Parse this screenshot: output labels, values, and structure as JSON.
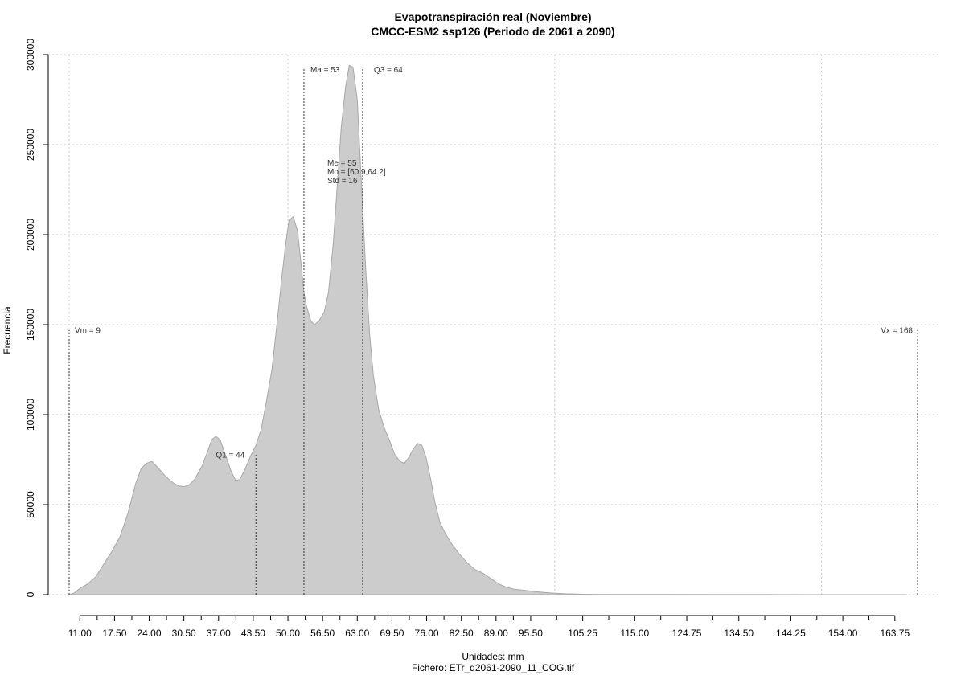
{
  "chart_data": {
    "type": "area",
    "title": "Evapotranspiración real (Noviembre)",
    "subtitle": "CMCC-ESM2 ssp126 (Periodo de 2061 a 2090)",
    "xlabel": "Unidades: mm",
    "ylabel": "Frecuencia",
    "footer": "Fichero: ETr_d2061-2090_11_COG.tif",
    "xlim": [
      9,
      168
    ],
    "ylim": [
      0,
      300000
    ],
    "grid": true,
    "fill_color": "#cccccc",
    "line_color": "#a8a8a8",
    "x_ticks": [
      11.0,
      17.5,
      24.0,
      30.5,
      37.0,
      43.5,
      50.0,
      56.5,
      63.0,
      69.5,
      76.0,
      82.5,
      89.0,
      95.5,
      105.25,
      115.0,
      124.75,
      134.5,
      144.25,
      154.0,
      163.75
    ],
    "x_tick_labels": [
      "11.00",
      "17.50",
      "24.00",
      "30.50",
      "37.00",
      "43.50",
      "50.00",
      "56.50",
      "63.00",
      "69.50",
      "76.00",
      "82.50",
      "89.00",
      "95.50",
      "105.25",
      "115.00",
      "124.75",
      "134.50",
      "144.25",
      "154.00",
      "163.75"
    ],
    "y_ticks": [
      0,
      50000,
      100000,
      150000,
      200000,
      250000,
      300000
    ],
    "y_tick_labels": [
      "0",
      "50000",
      "100000",
      "150000",
      "200000",
      "250000",
      "300000"
    ],
    "x": [
      9,
      10,
      11,
      12.5,
      14,
      15.5,
      17,
      18.5,
      20,
      21.5,
      22.5,
      23.5,
      24.5,
      25.5,
      27,
      28.5,
      29.5,
      30.5,
      31.5,
      32.5,
      34,
      35,
      35.7,
      36.5,
      37.3,
      38.5,
      39.3,
      40.2,
      41,
      42,
      43,
      44,
      45,
      46,
      47,
      48,
      48.8,
      49.5,
      50.2,
      51,
      51.8,
      52.5,
      53,
      53.5,
      54.3,
      55,
      55.8,
      56.8,
      57.6,
      58.5,
      59.3,
      60,
      60.8,
      61.5,
      62.2,
      63,
      63.5,
      64,
      64.6,
      65.3,
      66,
      67,
      68,
      69,
      70,
      71,
      71.8,
      72.6,
      73.5,
      74.3,
      75.1,
      75.9,
      76.7,
      77.5,
      78.5,
      79.5,
      80.5,
      82,
      83.5,
      85,
      86.5,
      88,
      89.5,
      91,
      92.5,
      94,
      96,
      98,
      100,
      102,
      104,
      106,
      110,
      120,
      130,
      140,
      150,
      160,
      166
    ],
    "values": [
      0,
      1000,
      3500,
      6000,
      10000,
      17000,
      24000,
      32000,
      45000,
      62000,
      70000,
      73000,
      74000,
      71000,
      66000,
      62000,
      60500,
      60000,
      61000,
      64000,
      72000,
      80000,
      86000,
      88000,
      86000,
      76000,
      69000,
      63500,
      64000,
      70000,
      77000,
      83000,
      92000,
      108000,
      125000,
      152000,
      175000,
      193000,
      208000,
      210000,
      202000,
      183000,
      168000,
      160000,
      152000,
      150000,
      152000,
      157000,
      168000,
      195000,
      230000,
      260000,
      282000,
      294000,
      293000,
      275000,
      245000,
      215000,
      180000,
      145000,
      122000,
      103000,
      93000,
      86000,
      78000,
      74000,
      73000,
      76000,
      81000,
      84000,
      83000,
      76000,
      65000,
      52000,
      40000,
      34000,
      29000,
      23000,
      18000,
      14000,
      12000,
      9000,
      6000,
      4000,
      3000,
      2500,
      1800,
      1200,
      800,
      500,
      300,
      200,
      120,
      80,
      50,
      30,
      20,
      10,
      0
    ],
    "markers": [
      {
        "label": "Vm = 9",
        "x": 9,
        "height": 147000
      },
      {
        "label": "Q1 = 44",
        "x": 44,
        "height": 78000
      },
      {
        "label": "Ma = 53",
        "x": 53,
        "height": 292000
      },
      {
        "label": "Q3 = 64",
        "x": 64,
        "height": 292000
      },
      {
        "label": "Vx = 168",
        "x": 168,
        "height": 147000
      }
    ],
    "stats": [
      "Me = 55",
      "Mo = [60.9,64.2]",
      "Std = 16"
    ]
  }
}
